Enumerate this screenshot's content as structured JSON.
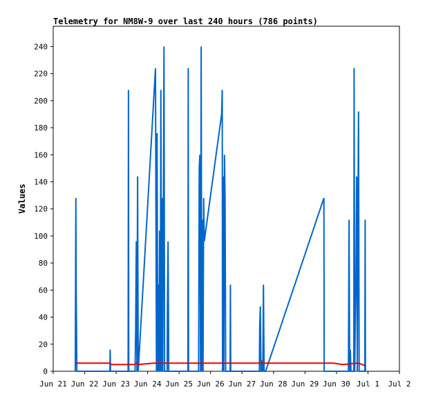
{
  "chart_data": {
    "type": "line",
    "title": "Telemetry for NM8W-9 over last 240 hours (786 points)",
    "ylabel": "Values",
    "xlabel": "",
    "x_axis_type": "date",
    "xlim": [
      "Jun 21",
      "Jul 2"
    ],
    "ylim": [
      0,
      255
    ],
    "x_ticks": [
      "Jun 21",
      "Jun 22",
      "Jun 23",
      "Jun 24",
      "Jun 25",
      "Jun 26",
      "Jun 27",
      "Jun 28",
      "Jun 29",
      "Jun 30",
      "Jul 1",
      "Jul 2"
    ],
    "y_ticks": [
      0,
      20,
      40,
      60,
      80,
      100,
      120,
      140,
      160,
      180,
      200,
      220,
      240
    ],
    "grid": false,
    "legend": "none",
    "colors": {
      "series_blue": "#0066cc",
      "series_red": "#ee0000",
      "axis": "#000000"
    },
    "series": [
      {
        "color": "#0066cc",
        "points": [
          [
            21.7,
            0
          ],
          [
            21.72,
            128
          ],
          [
            21.73,
            64
          ],
          [
            21.75,
            0
          ],
          [
            22.8,
            0
          ],
          [
            22.81,
            16
          ],
          [
            22.82,
            0
          ],
          [
            23.38,
            0
          ],
          [
            23.39,
            208
          ],
          [
            23.4,
            0
          ],
          [
            23.6,
            0
          ],
          [
            23.62,
            30
          ],
          [
            23.64,
            96
          ],
          [
            23.66,
            0
          ],
          [
            23.68,
            144
          ],
          [
            23.7,
            0
          ],
          [
            24.25,
            224
          ],
          [
            24.28,
            0
          ],
          [
            24.3,
            176
          ],
          [
            24.32,
            0
          ],
          [
            24.34,
            64
          ],
          [
            24.36,
            0
          ],
          [
            24.38,
            104
          ],
          [
            24.4,
            0
          ],
          [
            24.42,
            208
          ],
          [
            24.44,
            0
          ],
          [
            24.46,
            128
          ],
          [
            24.48,
            0
          ],
          [
            24.52,
            240
          ],
          [
            24.54,
            0
          ],
          [
            24.62,
            0
          ],
          [
            24.63,
            48
          ],
          [
            24.65,
            96
          ],
          [
            24.67,
            0
          ],
          [
            25.28,
            0
          ],
          [
            25.29,
            224
          ],
          [
            25.3,
            0
          ],
          [
            25.62,
            0
          ],
          [
            25.64,
            150
          ],
          [
            25.66,
            160
          ],
          [
            25.68,
            0
          ],
          [
            25.7,
            240
          ],
          [
            25.72,
            0
          ],
          [
            25.74,
            112
          ],
          [
            25.76,
            0
          ],
          [
            25.78,
            128
          ],
          [
            25.8,
            96
          ],
          [
            26.35,
            190
          ],
          [
            26.37,
            208
          ],
          [
            26.38,
            0
          ],
          [
            26.4,
            144
          ],
          [
            26.42,
            0
          ],
          [
            26.44,
            160
          ],
          [
            26.46,
            128
          ],
          [
            26.48,
            0
          ],
          [
            26.62,
            0
          ],
          [
            26.63,
            64
          ],
          [
            26.64,
            0
          ],
          [
            27.55,
            0
          ],
          [
            27.56,
            32
          ],
          [
            27.58,
            48
          ],
          [
            27.6,
            0
          ],
          [
            27.62,
            0
          ],
          [
            27.64,
            8
          ],
          [
            27.66,
            0
          ],
          [
            27.68,
            64
          ],
          [
            27.7,
            0
          ],
          [
            27.75,
            0
          ],
          [
            29.6,
            128
          ],
          [
            29.61,
            0
          ],
          [
            30.38,
            0
          ],
          [
            30.4,
            112
          ],
          [
            30.42,
            0
          ],
          [
            30.44,
            16
          ],
          [
            30.46,
            0
          ],
          [
            30.55,
            0
          ],
          [
            30.56,
            224
          ],
          [
            30.58,
            0
          ],
          [
            30.6,
            40
          ],
          [
            30.62,
            72
          ],
          [
            30.64,
            144
          ],
          [
            30.66,
            0
          ],
          [
            30.68,
            112
          ],
          [
            30.7,
            192
          ],
          [
            30.72,
            0
          ],
          [
            30.9,
            0
          ],
          [
            30.91,
            112
          ],
          [
            30.92,
            0
          ]
        ]
      },
      {
        "color": "#ee0000",
        "points": [
          [
            21.7,
            6
          ],
          [
            22.8,
            6
          ],
          [
            22.85,
            5
          ],
          [
            23.6,
            5
          ],
          [
            23.65,
            6
          ],
          [
            23.7,
            5
          ],
          [
            24.2,
            6
          ],
          [
            25.8,
            6
          ],
          [
            26.3,
            6
          ],
          [
            29.9,
            6
          ],
          [
            30.2,
            5
          ],
          [
            30.7,
            6
          ],
          [
            30.92,
            4
          ]
        ]
      }
    ]
  }
}
